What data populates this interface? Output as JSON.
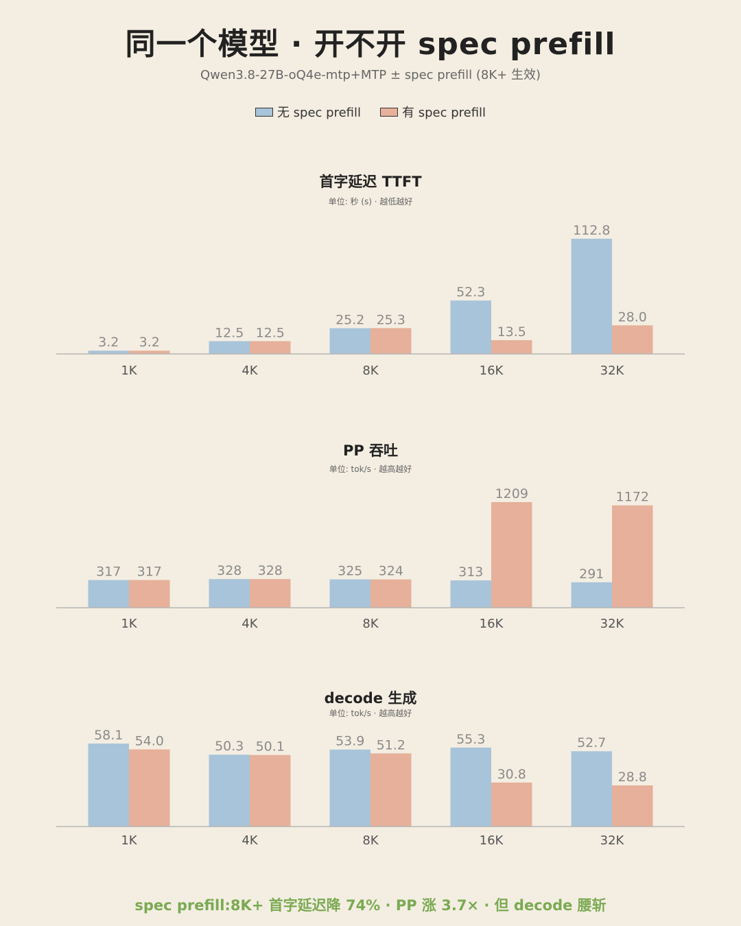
{
  "title": "同一个模型 · 开不开 spec prefill",
  "subtitle": "Qwen3.8-27B-oQ4e-mtp+MTP  ± spec prefill (8K+ 生效)",
  "legend": [
    {
      "label": "无 spec prefill",
      "color": "#a8c4da"
    },
    {
      "label": "有 spec prefill",
      "color": "#e6b09a"
    }
  ],
  "footer": "spec prefill:8K+ 首字延迟降 74% · PP 涨 3.7× · 但 decode 腰斩",
  "chart_data": [
    {
      "type": "bar",
      "title": "首字延迟 TTFT",
      "subtitle": "单位: 秒 (s) · 越低越好",
      "categories": [
        "1K",
        "4K",
        "8K",
        "16K",
        "32K"
      ],
      "series": [
        {
          "name": "无 spec prefill",
          "values": [
            3.2,
            12.5,
            25.2,
            52.3,
            112.8
          ],
          "labels": [
            "3.2",
            "12.5",
            "25.2",
            "52.3",
            "112.8"
          ]
        },
        {
          "name": "有 spec prefill",
          "values": [
            3.2,
            12.5,
            25.3,
            13.5,
            28.0
          ],
          "labels": [
            "3.2",
            "12.5",
            "25.3",
            "13.5",
            "28.0"
          ]
        }
      ],
      "ylim": [
        0,
        112.8
      ]
    },
    {
      "type": "bar",
      "title": "PP 吞吐",
      "subtitle": "单位: tok/s · 越高越好",
      "categories": [
        "1K",
        "4K",
        "8K",
        "16K",
        "32K"
      ],
      "series": [
        {
          "name": "无 spec prefill",
          "values": [
            317,
            328,
            325,
            313,
            291
          ],
          "labels": [
            "317",
            "328",
            "325",
            "313",
            "291"
          ]
        },
        {
          "name": "有 spec prefill",
          "values": [
            317,
            328,
            324,
            1209,
            1172
          ],
          "labels": [
            "317",
            "328",
            "324",
            "1209",
            "1172"
          ]
        }
      ],
      "ylim": [
        0,
        1209
      ]
    },
    {
      "type": "bar",
      "title": "decode 生成",
      "subtitle": "单位: tok/s · 越高越好",
      "categories": [
        "1K",
        "4K",
        "8K",
        "16K",
        "32K"
      ],
      "series": [
        {
          "name": "无 spec prefill",
          "values": [
            58.1,
            50.3,
            53.9,
            55.3,
            52.7
          ],
          "labels": [
            "58.1",
            "50.3",
            "53.9",
            "55.3",
            "52.7"
          ]
        },
        {
          "name": "有 spec prefill",
          "values": [
            54.0,
            50.1,
            51.2,
            30.8,
            28.8
          ],
          "labels": [
            "54.0",
            "50.1",
            "51.2",
            "30.8",
            "28.8"
          ]
        }
      ],
      "ylim": [
        0,
        58.1
      ]
    }
  ]
}
